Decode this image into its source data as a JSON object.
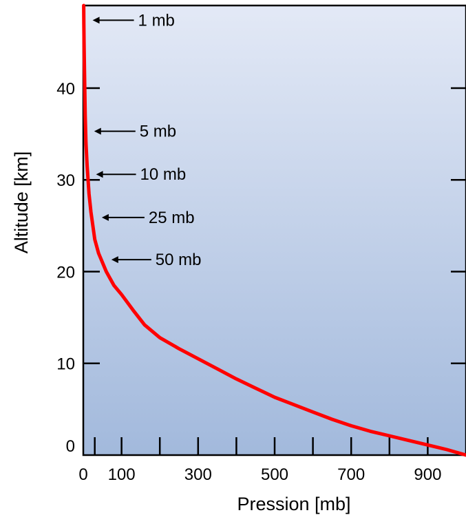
{
  "chart_data": {
    "type": "line",
    "xlabel": "Pression [mb]",
    "ylabel": "Altitude [km]",
    "xlim": [
      0,
      1000
    ],
    "ylim": [
      0,
      49
    ],
    "x_tick_labels": [
      "0",
      "100",
      "300",
      "500",
      "700",
      "900"
    ],
    "x_tick_values": [
      0,
      100,
      300,
      500,
      700,
      900
    ],
    "x_minor_ticks": [
      30,
      100,
      200,
      300,
      400,
      500,
      600,
      700,
      800,
      900
    ],
    "y_tick_labels": [
      "0",
      "10",
      "20",
      "30",
      "40"
    ],
    "y_tick_values": [
      0,
      10,
      20,
      30,
      40
    ],
    "y_right_ticks": [
      10,
      20,
      30,
      40
    ],
    "grid": false,
    "line_color": "#ff0000",
    "background_gradient": [
      "#e3e9f6",
      "#a2b9dc"
    ],
    "series": [
      {
        "x": [
          1,
          1.5,
          2,
          3,
          5,
          7,
          10,
          15,
          20,
          25,
          30,
          40,
          50,
          60,
          80,
          100,
          130,
          160,
          200,
          250,
          300,
          350,
          400,
          450,
          500,
          550,
          600,
          650,
          700,
          750,
          800,
          850,
          900,
          950,
          1000
        ],
        "y": [
          49,
          47,
          45,
          42,
          37,
          34,
          31.5,
          28.5,
          26.5,
          25,
          23.5,
          22,
          21,
          20,
          18.5,
          17.5,
          15.8,
          14.2,
          12.8,
          11.6,
          10.5,
          9.4,
          8.3,
          7.3,
          6.3,
          5.5,
          4.7,
          3.9,
          3.2,
          2.6,
          2.1,
          1.6,
          1.1,
          0.6,
          0
        ]
      }
    ],
    "annotations": [
      {
        "label": "1 mb",
        "x": 1,
        "y": 47.4
      },
      {
        "label": "5 mb",
        "x": 5,
        "y": 35.3
      },
      {
        "label": "10 mb",
        "x": 10,
        "y": 30.6
      },
      {
        "label": "25 mb",
        "x": 25,
        "y": 25.9
      },
      {
        "label": "50 mb",
        "x": 50,
        "y": 21.3
      }
    ]
  }
}
